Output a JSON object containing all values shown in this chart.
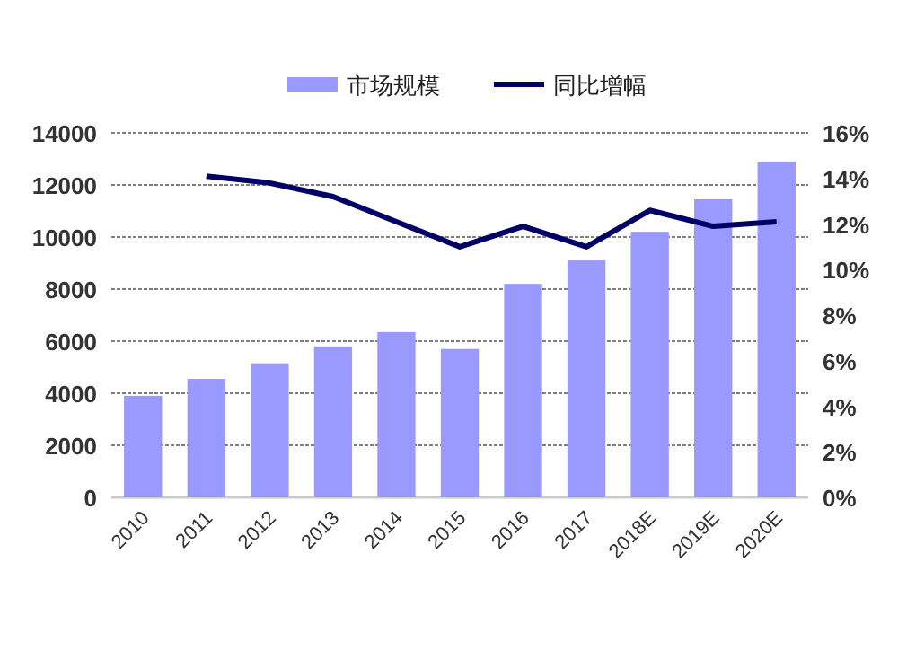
{
  "chart_data": {
    "type": "bar",
    "categories": [
      "2010",
      "2011",
      "2012",
      "2013",
      "2014",
      "2015",
      "2016",
      "2017",
      "2018E",
      "2019E",
      "2020E"
    ],
    "series": [
      {
        "name": "市场规模",
        "color": "#9999ff",
        "values": [
          3900,
          4550,
          5150,
          5800,
          6350,
          5700,
          8200,
          9100,
          10200,
          11450,
          12900
        ]
      },
      {
        "name": "同比增幅",
        "type": "line",
        "axis": "y2",
        "color": "#000066",
        "values": [
          null,
          14.1,
          13.8,
          13.2,
          12.1,
          11.0,
          11.9,
          11.0,
          12.6,
          11.9,
          12.1
        ]
      }
    ],
    "ylim": [
      0,
      14000
    ],
    "yticks": [
      0,
      2000,
      4000,
      6000,
      8000,
      10000,
      12000,
      14000
    ],
    "y2lim": [
      0,
      16
    ],
    "y2ticks": [
      {
        "value": 0,
        "label": "0%"
      },
      {
        "value": 2,
        "label": "2%"
      },
      {
        "value": 4,
        "label": "4%"
      },
      {
        "value": 6,
        "label": "6%"
      },
      {
        "value": 8,
        "label": "8%"
      },
      {
        "value": 10,
        "label": "10%"
      },
      {
        "value": 12,
        "label": "12%"
      },
      {
        "value": 14,
        "label": "14%"
      },
      {
        "value": 16,
        "label": "16%"
      }
    ],
    "grid": "y",
    "legend": "top"
  }
}
